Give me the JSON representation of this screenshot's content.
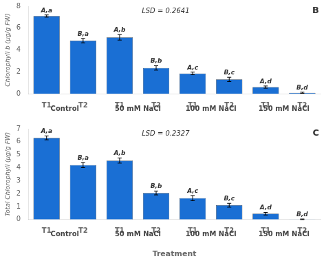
{
  "chart_data": [
    {
      "type": "bar",
      "title": "LSD = 0.2641",
      "annotations": [
        "B"
      ],
      "ylabel": "Chlorophyll b (μg/g FW)",
      "categories": [
        "T1",
        "T2",
        "T1",
        "T2",
        "T1",
        "T2",
        "T1",
        "T2"
      ],
      "group_labels": [
        "Control",
        "50 mM NaCl",
        "100 mM NaCl",
        "150 mM NaCl"
      ],
      "values": [
        7.1,
        4.85,
        5.15,
        2.35,
        1.85,
        1.3,
        0.6,
        0.08
      ],
      "errors": [
        0.1,
        0.2,
        0.25,
        0.2,
        0.12,
        0.2,
        0.1,
        0.05
      ],
      "bar_labels": [
        "A,a",
        "B,a",
        "A,b",
        "B,b",
        "A,c",
        "B,c",
        "A,d",
        "B,d"
      ],
      "color": "#1a6fd4",
      "ylim": [
        0,
        8
      ],
      "yticks": [
        0,
        2,
        4,
        6,
        8
      ],
      "grid": false
    },
    {
      "type": "bar",
      "title": "LSD = 0.2327",
      "annotations": [
        "C"
      ],
      "ylabel": "Total Chlorophyll (μg/g FW)",
      "xlabel": "Treatment",
      "categories": [
        "T1",
        "T2",
        "T1",
        "T2",
        "T1",
        "T2",
        "T1",
        "T2"
      ],
      "group_labels": [
        "Control",
        "50 mM NaCl",
        "100 mM NaCl",
        "150 mM NaCl"
      ],
      "values": [
        6.3,
        4.2,
        4.55,
        2.05,
        1.65,
        1.1,
        0.45,
        0.02
      ],
      "errors": [
        0.15,
        0.2,
        0.2,
        0.15,
        0.2,
        0.15,
        0.1,
        0.02
      ],
      "bar_labels": [
        "A,a",
        "B,a",
        "A,b",
        "B,b",
        "A,c",
        "B,c",
        "A,d",
        "B,d"
      ],
      "color": "#1a6fd4",
      "ylim": [
        0,
        7
      ],
      "yticks": [
        0,
        1,
        2,
        3,
        4,
        5,
        6,
        7
      ],
      "grid": false
    }
  ]
}
